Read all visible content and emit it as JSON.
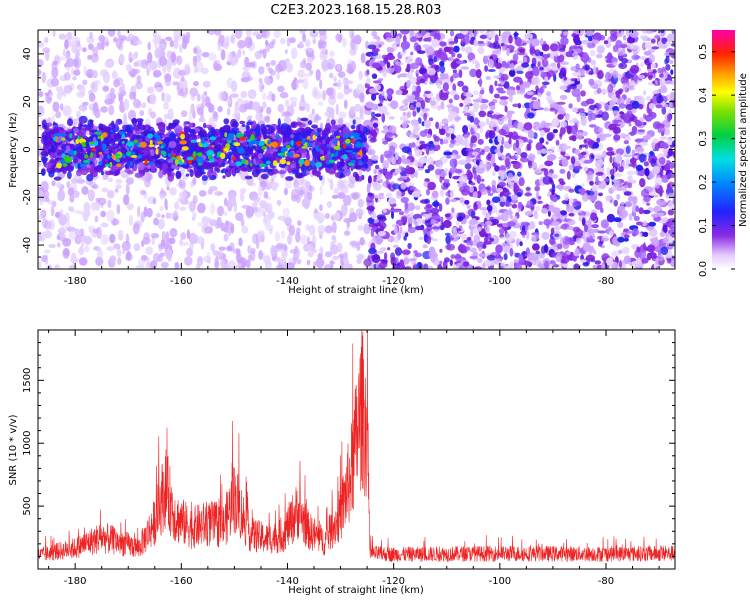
{
  "title": "C2E3.2023.168.15.28.R03",
  "chart_data": [
    {
      "type": "heatmap",
      "xlabel": "Height of straight line (km)",
      "ylabel": "Frequency (Hz)",
      "xlim": [
        -187,
        -67
      ],
      "ylim": [
        -50,
        50
      ],
      "x_ticks": [
        -180,
        -160,
        -140,
        -120,
        -100,
        -80
      ],
      "y_ticks": [
        -40,
        -20,
        0,
        20,
        40
      ],
      "x_tick_labels": [
        "-180",
        "-160",
        "-140",
        "-120",
        "-100",
        "-80"
      ],
      "y_tick_labels": [
        "-40",
        "-20",
        "0",
        "20",
        "40"
      ],
      "colorbar": {
        "label": "Normalized spectral amplitude",
        "range": [
          0.0,
          0.55
        ],
        "ticks": [
          0.0,
          0.1,
          0.2,
          0.3,
          0.4,
          0.5
        ],
        "tick_labels": [
          "0.0",
          "0.1",
          "0.2",
          "0.3",
          "0.4",
          "0.5"
        ],
        "colormap": "rainbow (white-violet-blue-cyan-green-yellow-red-magenta)"
      },
      "signal_band": {
        "x_range": [
          -186,
          -125
        ],
        "center_freq": 0,
        "half_width": 10
      },
      "noise_floor_region": {
        "x_range": [
          -125,
          -67
        ]
      }
    },
    {
      "type": "line",
      "xlabel": "Height of straight line (km)",
      "ylabel": "SNR (10 * v/v)",
      "xlim": [
        -187,
        -67
      ],
      "ylim": [
        0,
        1900
      ],
      "x_ticks": [
        -180,
        -160,
        -140,
        -120,
        -100,
        -80
      ],
      "y_ticks": [
        500,
        1000,
        1500
      ],
      "x_tick_labels": [
        "-180",
        "-160",
        "-140",
        "-120",
        "-100",
        "-80"
      ],
      "y_tick_labels": [
        "500",
        "1000",
        "1500"
      ],
      "color": "#ee2222",
      "envelope": {
        "x": [
          -187,
          -180,
          -175,
          -172,
          -168,
          -165,
          -163,
          -161,
          -158,
          -155,
          -152,
          -150,
          -147,
          -144,
          -141,
          -138,
          -136,
          -133,
          -130,
          -128,
          -126,
          -125,
          -124.5,
          -120,
          -100,
          -80,
          -67
        ],
        "y": [
          150,
          230,
          350,
          300,
          230,
          520,
          900,
          560,
          450,
          500,
          470,
          800,
          380,
          330,
          360,
          650,
          420,
          300,
          600,
          1050,
          1800,
          1500,
          170,
          160,
          170,
          165,
          170
        ]
      }
    }
  ]
}
